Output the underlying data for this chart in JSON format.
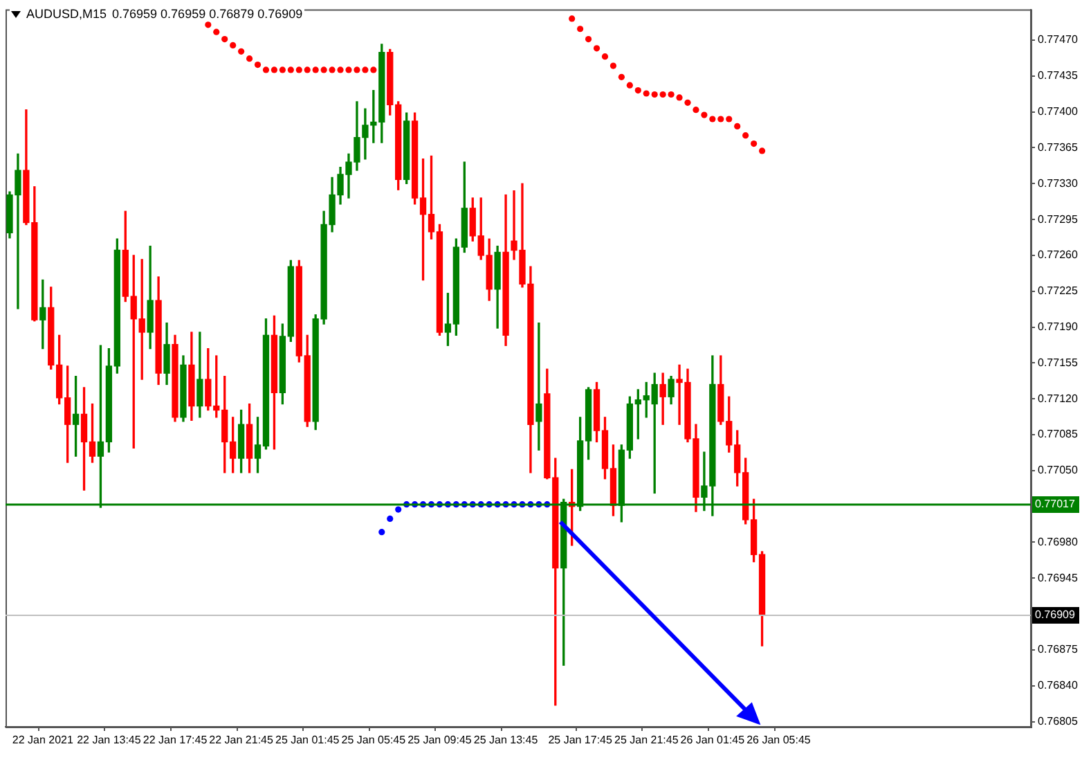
{
  "chart_data": {
    "type": "candlestick",
    "title": "AUDUSD,M15",
    "subtitle": "0.76959 0.76959 0.76879 0.76909",
    "categories": [
      null,
      null,
      null,
      null,
      "22 Jan 2021",
      null,
      null,
      null,
      null,
      null,
      null,
      null,
      "22 Jan 13:45",
      null,
      null,
      null,
      null,
      null,
      null,
      null,
      "22 Jan 17:45",
      null,
      null,
      null,
      null,
      null,
      null,
      null,
      "22 Jan 21:45",
      null,
      null,
      null,
      null,
      null,
      null,
      null,
      "25 Jan 01:45",
      null,
      null,
      null,
      null,
      null,
      null,
      null,
      "25 Jan 05:45",
      null,
      null,
      null,
      null,
      null,
      null,
      null,
      "25 Jan 09:45",
      null,
      null,
      null,
      null,
      null,
      null,
      null,
      "25 Jan 13:45",
      null,
      null,
      null,
      null,
      null,
      null,
      null,
      null,
      "25 Jan 17:45",
      null,
      null,
      null,
      null,
      null,
      null,
      null,
      "25 Jan 21:45",
      null,
      null,
      null,
      null,
      null,
      null,
      null,
      "26 Jan 01:45",
      null,
      null,
      null,
      null,
      null,
      null,
      null,
      "26 Jan 05:45",
      null,
      null,
      null,
      null,
      null,
      null,
      null,
      null,
      null,
      null,
      null,
      null,
      null,
      null,
      null,
      null,
      null,
      null,
      null,
      null,
      null,
      null,
      null,
      null,
      null,
      null,
      null,
      null,
      null,
      null
    ],
    "ohlc": [
      [
        0.77282,
        0.77322,
        0.77277,
        0.77319
      ],
      [
        0.77319,
        0.77359,
        0.77208,
        0.77343
      ],
      [
        0.77343,
        0.77402,
        0.7729,
        0.77292
      ],
      [
        0.77292,
        0.77327,
        0.77196,
        0.77197
      ],
      [
        0.77197,
        0.77236,
        0.77169,
        0.77209
      ],
      [
        0.77209,
        0.77229,
        0.77149,
        0.77153
      ],
      [
        0.77153,
        0.77182,
        0.77115,
        0.77121
      ],
      [
        0.77121,
        0.77152,
        0.77058,
        0.77095
      ],
      [
        0.77095,
        0.77142,
        0.77064,
        0.77105
      ],
      [
        0.77105,
        0.77131,
        0.77031,
        0.77078
      ],
      [
        0.77078,
        0.77115,
        0.77058,
        0.77064
      ],
      [
        0.77064,
        0.77172,
        0.77014,
        0.77078
      ],
      [
        0.77078,
        0.77169,
        0.77068,
        0.77152
      ],
      [
        0.77152,
        0.77276,
        0.77145,
        0.77265
      ],
      [
        0.77265,
        0.77303,
        0.77215,
        0.7722
      ],
      [
        0.7722,
        0.7726,
        0.77072,
        0.77198
      ],
      [
        0.77198,
        0.77256,
        0.77139,
        0.77185
      ],
      [
        0.77185,
        0.77269,
        0.77169,
        0.77216
      ],
      [
        0.77216,
        0.77239,
        0.77134,
        0.77145
      ],
      [
        0.77145,
        0.77194,
        0.77134,
        0.77173
      ],
      [
        0.77173,
        0.77182,
        0.77098,
        0.77102
      ],
      [
        0.77102,
        0.77162,
        0.77098,
        0.77153
      ],
      [
        0.77153,
        0.77185,
        0.77099,
        0.77113
      ],
      [
        0.77113,
        0.77185,
        0.77102,
        0.77139
      ],
      [
        0.77139,
        0.77169,
        0.77109,
        0.77113
      ],
      [
        0.77113,
        0.77162,
        0.77102,
        0.77109
      ],
      [
        0.77109,
        0.77142,
        0.77048,
        0.77078
      ],
      [
        0.77078,
        0.77102,
        0.77048,
        0.77062
      ],
      [
        0.77062,
        0.77109,
        0.77048,
        0.77095
      ],
      [
        0.77095,
        0.77115,
        0.77048,
        0.77062
      ],
      [
        0.77062,
        0.77102,
        0.77048,
        0.77075
      ],
      [
        0.77074,
        0.77198,
        0.77071,
        0.77182
      ],
      [
        0.77182,
        0.77201,
        0.77071,
        0.77126
      ],
      [
        0.77126,
        0.77193,
        0.77115,
        0.77181
      ],
      [
        0.77181,
        0.77255,
        0.77176,
        0.77249
      ],
      [
        0.77249,
        0.77255,
        0.77156,
        0.77162
      ],
      [
        0.77162,
        0.77182,
        0.77093,
        0.77098
      ],
      [
        0.77098,
        0.77202,
        0.7709,
        0.77198
      ],
      [
        0.77198,
        0.77303,
        0.77193,
        0.7729
      ],
      [
        0.7729,
        0.77336,
        0.77283,
        0.77319
      ],
      [
        0.77319,
        0.77346,
        0.7731,
        0.77339
      ],
      [
        0.77339,
        0.77359,
        0.77316,
        0.77351
      ],
      [
        0.77351,
        0.7741,
        0.77343,
        0.77375
      ],
      [
        0.77375,
        0.77403,
        0.77354,
        0.77387
      ],
      [
        0.77387,
        0.77421,
        0.7737,
        0.7739
      ],
      [
        0.7739,
        0.77466,
        0.7737,
        0.77458
      ],
      [
        0.77458,
        0.77461,
        0.77397,
        0.77407
      ],
      [
        0.77407,
        0.7741,
        0.77324,
        0.77334
      ],
      [
        0.77334,
        0.77399,
        0.7733,
        0.77391
      ],
      [
        0.77391,
        0.77399,
        0.7731,
        0.77316
      ],
      [
        0.77316,
        0.77354,
        0.77236,
        0.773
      ],
      [
        0.773,
        0.77357,
        0.77276,
        0.77283
      ],
      [
        0.77283,
        0.7729,
        0.77182,
        0.77185
      ],
      [
        0.77185,
        0.77223,
        0.77172,
        0.77193
      ],
      [
        0.77193,
        0.77276,
        0.77182,
        0.77268
      ],
      [
        0.77268,
        0.77351,
        0.77263,
        0.77306
      ],
      [
        0.77306,
        0.77316,
        0.77274,
        0.77279
      ],
      [
        0.77279,
        0.77316,
        0.77256,
        0.7726
      ],
      [
        0.7726,
        0.77276,
        0.77216,
        0.77227
      ],
      [
        0.77227,
        0.77269,
        0.77189,
        0.77263
      ],
      [
        0.77263,
        0.77319,
        0.77172,
        0.77182
      ],
      [
        0.77274,
        0.77323,
        0.77256,
        0.77265
      ],
      [
        0.77265,
        0.7733,
        0.77229,
        0.77232
      ],
      [
        0.77232,
        0.77249,
        0.77048,
        0.77095
      ],
      [
        0.77098,
        0.77194,
        0.7707,
        0.77115
      ],
      [
        0.77125,
        0.77149,
        0.77042,
        0.77043
      ],
      [
        0.77043,
        0.77062,
        0.76821,
        0.76955
      ],
      [
        0.76955,
        0.77022,
        0.7686,
        0.77019
      ],
      [
        0.77019,
        0.77051,
        0.76977,
        0.77015
      ],
      [
        0.77015,
        0.77102,
        0.77011,
        0.77079
      ],
      [
        0.77079,
        0.77131,
        0.77061,
        0.77129
      ],
      [
        0.77129,
        0.77136,
        0.77078,
        0.77089
      ],
      [
        0.77089,
        0.77102,
        0.77042,
        0.77052
      ],
      [
        0.77052,
        0.77075,
        0.77006,
        0.77016
      ],
      [
        0.77016,
        0.77075,
        0.77,
        0.7707
      ],
      [
        0.7707,
        0.77122,
        0.77062,
        0.77115
      ],
      [
        0.77115,
        0.77129,
        0.77081,
        0.77119
      ],
      [
        0.77119,
        0.77136,
        0.77102,
        0.77123
      ],
      [
        0.77115,
        0.77145,
        0.77028,
        0.77134
      ],
      [
        0.77134,
        0.77145,
        0.77095,
        0.77122
      ],
      [
        0.77122,
        0.77142,
        0.77115,
        0.77139
      ],
      [
        0.77139,
        0.77153,
        0.77095,
        0.77136
      ],
      [
        0.77136,
        0.77149,
        0.77078,
        0.77081
      ],
      [
        0.77081,
        0.77095,
        0.7701,
        0.77024
      ],
      [
        0.77024,
        0.77068,
        0.77011,
        0.77035
      ],
      [
        0.77035,
        0.77162,
        0.77006,
        0.77134
      ],
      [
        0.77134,
        0.77162,
        0.77095,
        0.77098
      ],
      [
        0.77098,
        0.77122,
        0.77068,
        0.77075
      ],
      [
        0.77075,
        0.77089,
        0.77035,
        0.77048
      ],
      [
        0.77048,
        0.77062,
        0.76998,
        0.77002
      ],
      [
        0.77002,
        0.77022,
        0.76961,
        0.76968
      ],
      [
        0.76968,
        0.76971,
        0.76879,
        0.76909
      ],
      null,
      null,
      null,
      null,
      null,
      null,
      null,
      null,
      null,
      null,
      null,
      null,
      null,
      null,
      null,
      null,
      null,
      null,
      null,
      null,
      null,
      null,
      null,
      null,
      null,
      null,
      null,
      null,
      null,
      null,
      null,
      null
    ],
    "colors": [
      "#008000",
      "#008000",
      "#ff0000",
      "#ff0000",
      "#008000",
      "#ff0000",
      "#ff0000",
      "#ff0000",
      "#008000",
      "#ff0000",
      "#ff0000",
      "#008000",
      "#008000",
      "#008000",
      "#ff0000",
      "#ff0000",
      "#ff0000",
      "#008000",
      "#ff0000",
      "#008000",
      "#ff0000",
      "#008000",
      "#ff0000",
      "#008000",
      "#ff0000",
      "#ff0000",
      "#ff0000",
      "#ff0000",
      "#008000",
      "#ff0000",
      "#008000",
      "#008000",
      "#ff0000",
      "#008000",
      "#008000",
      "#ff0000",
      "#ff0000",
      "#008000",
      "#008000",
      "#008000",
      "#008000",
      "#008000",
      "#008000",
      "#008000",
      "#008000",
      "#008000",
      "#ff0000",
      "#ff0000",
      "#008000",
      "#ff0000",
      "#ff0000",
      "#ff0000",
      "#ff0000",
      "#008000",
      "#008000",
      "#008000",
      "#ff0000",
      "#ff0000",
      "#ff0000",
      "#008000",
      "#ff0000",
      "#ff0000",
      "#ff0000",
      "#ff0000",
      "#008000",
      "#ff0000",
      "#ff0000",
      "#008000",
      "#ff0000",
      "#008000",
      "#008000",
      "#ff0000",
      "#ff0000",
      "#ff0000",
      "#008000",
      "#008000",
      "#008000",
      "#008000",
      "#008000",
      "#ff0000",
      "#008000",
      "#ff0000",
      "#ff0000",
      "#ff0000",
      "#008000",
      "#008000",
      "#ff0000",
      "#ff0000",
      "#ff0000",
      "#ff0000",
      "#ff0000",
      "#ff0000",
      null,
      null,
      null,
      null,
      null,
      null,
      null,
      null,
      null,
      null,
      null,
      null,
      null,
      null,
      null,
      null,
      null,
      null,
      null,
      null,
      null,
      null,
      null,
      null,
      null,
      null,
      null,
      null,
      null,
      null,
      null,
      null
    ],
    "series": [
      {
        "type": "scatter",
        "color": "#ff0000",
        "marker": "circle",
        "values": [
          null,
          null,
          null,
          null,
          null,
          null,
          null,
          null,
          null,
          null,
          null,
          null,
          null,
          null,
          null,
          null,
          null,
          null,
          null,
          null,
          null,
          null,
          null,
          null,
          0.77485,
          0.77478,
          0.77471,
          0.77465,
          0.77459,
          0.77452,
          0.77446,
          0.77441,
          0.77441,
          0.77441,
          0.77441,
          0.77441,
          0.77441,
          0.77441,
          0.77441,
          0.77441,
          0.77441,
          0.77441,
          0.77441,
          0.77441,
          0.77441,
          null,
          null,
          null,
          null,
          null,
          null,
          null,
          null,
          null,
          null,
          null,
          null,
          null,
          null,
          null,
          null,
          null,
          null,
          null,
          null,
          null,
          null,
          null,
          0.77491,
          0.77481,
          0.77471,
          0.77462,
          0.77454,
          0.77445,
          0.77434,
          0.77426,
          0.77421,
          0.77418,
          0.77417,
          0.77417,
          0.77417,
          0.77414,
          0.77409,
          0.77402,
          0.77397,
          0.77393,
          0.77393,
          0.77393,
          0.77386,
          0.77377,
          0.77369,
          0.77362,
          null,
          null,
          null,
          null,
          null,
          null,
          null,
          null,
          null,
          null,
          null,
          null,
          null,
          null,
          null,
          null,
          null,
          null,
          null,
          null,
          null,
          null,
          null,
          null,
          null,
          null,
          null,
          null,
          null,
          null,
          null,
          null
        ]
      },
      {
        "type": "scatter",
        "color": "#0000ff",
        "marker": "circle",
        "values": [
          null,
          null,
          null,
          null,
          null,
          null,
          null,
          null,
          null,
          null,
          null,
          null,
          null,
          null,
          null,
          null,
          null,
          null,
          null,
          null,
          null,
          null,
          null,
          null,
          null,
          null,
          null,
          null,
          null,
          null,
          null,
          null,
          null,
          null,
          null,
          null,
          null,
          null,
          null,
          null,
          null,
          null,
          null,
          null,
          null,
          0.7699,
          0.77003,
          0.77012,
          0.77017,
          0.77017,
          0.77017,
          0.77017,
          0.77017,
          0.77017,
          0.77017,
          0.77017,
          0.77017,
          0.77017,
          0.77017,
          0.77017,
          0.77017,
          0.77017,
          0.77017,
          0.77017,
          0.77017,
          0.77017,
          null,
          null,
          null,
          null,
          null,
          null,
          null,
          null,
          null,
          null,
          null,
          null,
          null,
          null,
          null,
          null,
          null,
          null,
          null,
          null,
          null,
          null,
          null,
          null,
          null,
          null,
          null,
          null,
          null,
          null,
          null,
          null,
          null,
          null,
          null,
          null,
          null,
          null,
          null,
          null,
          null,
          null,
          null,
          null,
          null,
          null,
          null,
          null,
          null,
          null,
          null,
          null,
          null,
          null,
          null,
          null,
          null,
          null
        ]
      }
    ],
    "ylim": [
      0.768,
      0.775
    ],
    "yticks": [
      0.76805,
      {
        "value": 0.7684,
        "label": "0.76840"
      },
      0.76875,
      0.76945,
      {
        "value": 0.7698,
        "label": "0.76980"
      },
      {
        "value": 0.7705,
        "label": "0.77050"
      },
      0.77085,
      {
        "value": 0.7712,
        "label": "0.77120"
      },
      0.77155,
      {
        "value": 0.7719,
        "label": "0.77190"
      },
      0.77225,
      {
        "value": 0.7726,
        "label": "0.77260"
      },
      0.77295,
      {
        "value": 0.7733,
        "label": "0.77330"
      },
      0.77365,
      {
        "value": 0.774,
        "label": "0.77400"
      },
      0.77435,
      {
        "value": 0.7747,
        "label": "0.77470"
      }
    ],
    "ref_lines": [
      {
        "axis": "y",
        "value": 0.77017,
        "label": "0.77017",
        "color": "#008000"
      },
      {
        "axis": "y",
        "value": 0.76909,
        "label": "0.76909",
        "color": "#c0c0c0"
      }
    ],
    "grid": false,
    "legend": false
  }
}
